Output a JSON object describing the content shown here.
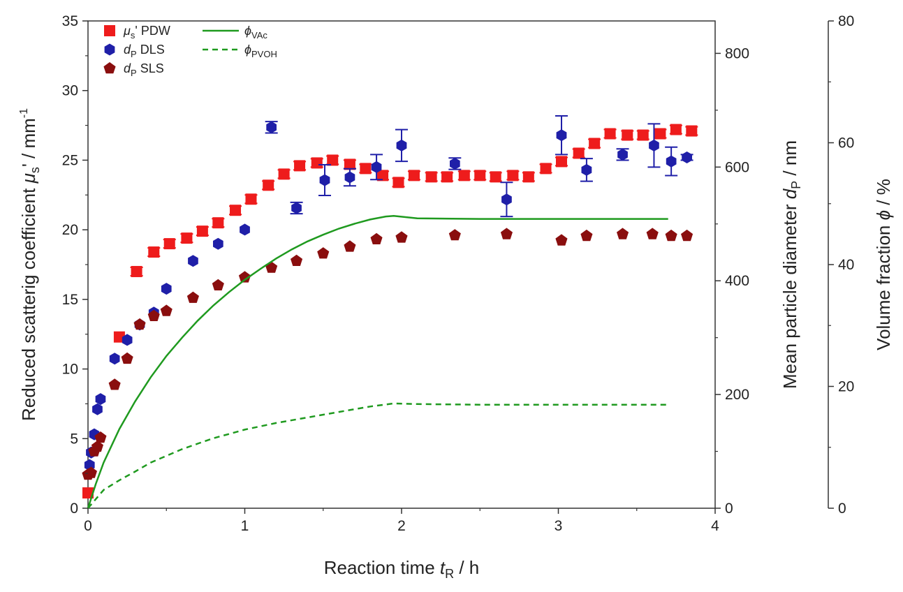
{
  "chart_data": {
    "type": "scatter",
    "x_axis": {
      "label": "Reaction time t_R / h",
      "label_main": "Reaction time ",
      "label_var": "t",
      "label_sub": "R",
      "label_tail": " / h",
      "range": [
        0,
        4
      ],
      "ticks": [
        "0",
        "1",
        "2",
        "3",
        "4"
      ]
    },
    "y_axes": [
      {
        "id": "mu",
        "label": "Reduced scatterig coefficient μs' / mm-1",
        "label_main": "Reduced scatterig coefficient ",
        "label_var": "μ",
        "label_sub": "s",
        "label_tail": "' / mm",
        "label_sup": "-1",
        "range": [
          0,
          35
        ],
        "ticks": [
          "0",
          "5",
          "10",
          "15",
          "20",
          "25",
          "30",
          "35"
        ]
      },
      {
        "id": "dp",
        "label": "Mean particle diameter dP / nm",
        "label_main": "Mean particle diameter ",
        "label_var": "d",
        "label_sub": "P",
        "label_tail": " / nm",
        "range": [
          0,
          857
        ],
        "ticks": [
          "0",
          "200",
          "400",
          "600",
          "800"
        ]
      },
      {
        "id": "phi",
        "label": "Volume fraction ϕ / %",
        "label_main": "Volume fraction ",
        "label_var": "ϕ",
        "label_tail": " / %",
        "range": [
          0,
          80
        ],
        "ticks": [
          "0",
          "20",
          "40",
          "60",
          "80"
        ]
      }
    ],
    "legend_position": "top-left",
    "series": [
      {
        "name": "μs' PDW",
        "legend_var": "μ",
        "legend_sub": "s",
        "legend_tail": "' PDW",
        "axis": "mu",
        "marker": "square",
        "color": "#ee1c1c",
        "points": [
          [
            0.0,
            1.1,
            0
          ],
          [
            0.2,
            12.3,
            0
          ],
          [
            0.31,
            17.0,
            0.3
          ],
          [
            0.42,
            18.4,
            0.3
          ],
          [
            0.52,
            19.0,
            0.3
          ],
          [
            0.63,
            19.4,
            0.3
          ],
          [
            0.73,
            19.9,
            0.3
          ],
          [
            0.83,
            20.5,
            0.3
          ],
          [
            0.94,
            21.4,
            0.3
          ],
          [
            1.04,
            22.2,
            0.3
          ],
          [
            1.15,
            23.2,
            0.3
          ],
          [
            1.25,
            24.0,
            0.3
          ],
          [
            1.35,
            24.6,
            0.3
          ],
          [
            1.46,
            24.8,
            0.3
          ],
          [
            1.56,
            25.0,
            0.3
          ],
          [
            1.67,
            24.7,
            0.3
          ],
          [
            1.77,
            24.4,
            0.3
          ],
          [
            1.88,
            23.9,
            0.3
          ],
          [
            1.98,
            23.4,
            0.3
          ],
          [
            2.08,
            23.9,
            0.3
          ],
          [
            2.19,
            23.8,
            0.3
          ],
          [
            2.29,
            23.8,
            0.3
          ],
          [
            2.4,
            23.9,
            0.3
          ],
          [
            2.5,
            23.9,
            0.3
          ],
          [
            2.6,
            23.8,
            0.3
          ],
          [
            2.71,
            23.9,
            0.3
          ],
          [
            2.81,
            23.8,
            0.3
          ],
          [
            2.92,
            24.4,
            0.3
          ],
          [
            3.02,
            24.9,
            0.3
          ],
          [
            3.13,
            25.5,
            0.3
          ],
          [
            3.23,
            26.2,
            0.3
          ],
          [
            3.33,
            26.9,
            0.3
          ],
          [
            3.44,
            26.8,
            0.3
          ],
          [
            3.54,
            26.8,
            0.3
          ],
          [
            3.65,
            26.9,
            0.3
          ],
          [
            3.75,
            27.2,
            0.3
          ],
          [
            3.85,
            27.1,
            0.3
          ]
        ]
      },
      {
        "name": "dP DLS",
        "legend_var": "d",
        "legend_sub": "P",
        "legend_tail": " DLS",
        "axis": "dp",
        "marker": "hexagon",
        "color": "#1f1fa8",
        "points": [
          [
            0.01,
            76,
            0
          ],
          [
            0.02,
            98,
            0
          ],
          [
            0.04,
            130,
            0
          ],
          [
            0.06,
            174,
            0
          ],
          [
            0.08,
            192,
            0
          ],
          [
            0.17,
            263,
            0
          ],
          [
            0.25,
            296,
            0
          ],
          [
            0.33,
            323,
            0
          ],
          [
            0.42,
            344,
            0
          ],
          [
            0.5,
            386,
            0
          ],
          [
            0.67,
            435,
            0
          ],
          [
            0.83,
            465,
            0
          ],
          [
            1.0,
            490,
            0
          ],
          [
            1.17,
            670,
            10
          ],
          [
            1.33,
            528,
            10
          ],
          [
            1.51,
            577,
            27
          ],
          [
            1.67,
            582,
            15
          ],
          [
            1.84,
            600,
            22
          ],
          [
            2.0,
            638,
            28
          ],
          [
            2.34,
            606,
            10
          ],
          [
            2.67,
            543,
            30
          ],
          [
            3.02,
            656,
            34
          ],
          [
            3.18,
            595,
            20
          ],
          [
            3.41,
            622,
            10
          ],
          [
            3.61,
            638,
            38
          ],
          [
            3.72,
            610,
            25
          ],
          [
            3.82,
            617,
            5
          ]
        ]
      },
      {
        "name": "dP SLS",
        "legend_var": "d",
        "legend_sub": "P",
        "legend_tail": " SLS",
        "axis": "dp",
        "marker": "pentagon",
        "color": "#8a0e0e",
        "points": [
          [
            0.0,
            59,
            0
          ],
          [
            0.02,
            62,
            0
          ],
          [
            0.04,
            100,
            0
          ],
          [
            0.06,
            108,
            0
          ],
          [
            0.08,
            124,
            0
          ],
          [
            0.17,
            217,
            0
          ],
          [
            0.25,
            263,
            0
          ],
          [
            0.33,
            323,
            0
          ],
          [
            0.42,
            338,
            0
          ],
          [
            0.5,
            347,
            0
          ],
          [
            0.67,
            370,
            0
          ],
          [
            0.83,
            392,
            0
          ],
          [
            1.0,
            406,
            0
          ],
          [
            1.17,
            423,
            0
          ],
          [
            1.33,
            435,
            0
          ],
          [
            1.5,
            448,
            0
          ],
          [
            1.67,
            460,
            0
          ],
          [
            1.84,
            473,
            0
          ],
          [
            2.0,
            476,
            0
          ],
          [
            2.34,
            480,
            0
          ],
          [
            2.67,
            482,
            0
          ],
          [
            3.02,
            471,
            0
          ],
          [
            3.18,
            479,
            0
          ],
          [
            3.41,
            482,
            0
          ],
          [
            3.6,
            482,
            0
          ],
          [
            3.72,
            479,
            0
          ],
          [
            3.82,
            479,
            0
          ]
        ]
      },
      {
        "name": "ϕVAc",
        "legend_var": "ϕ",
        "legend_sub": "VAc",
        "legend_tail": "",
        "axis": "phi",
        "marker": "line",
        "color": "#1f9a1f",
        "dash": "none",
        "points": [
          [
            0,
            0
          ],
          [
            0.05,
            4
          ],
          [
            0.1,
            7.5
          ],
          [
            0.2,
            13
          ],
          [
            0.3,
            17.5
          ],
          [
            0.4,
            21.5
          ],
          [
            0.5,
            25
          ],
          [
            0.6,
            28
          ],
          [
            0.7,
            30.8
          ],
          [
            0.8,
            33.3
          ],
          [
            0.9,
            35.5
          ],
          [
            1.0,
            37.5
          ],
          [
            1.1,
            39.3
          ],
          [
            1.2,
            41
          ],
          [
            1.3,
            42.5
          ],
          [
            1.4,
            43.8
          ],
          [
            1.5,
            44.9
          ],
          [
            1.6,
            45.9
          ],
          [
            1.7,
            46.7
          ],
          [
            1.8,
            47.4
          ],
          [
            1.9,
            47.9
          ],
          [
            1.95,
            48
          ],
          [
            2.1,
            47.6
          ],
          [
            2.5,
            47.5
          ],
          [
            3.0,
            47.5
          ],
          [
            3.5,
            47.5
          ],
          [
            3.7,
            47.5
          ]
        ]
      },
      {
        "name": "ϕPVOH",
        "legend_var": "ϕ",
        "legend_sub": "PVOH",
        "legend_tail": "",
        "axis": "phi",
        "marker": "line",
        "color": "#1f9a1f",
        "dash": "8 6",
        "points": [
          [
            0,
            0
          ],
          [
            0.1,
            3
          ],
          [
            0.2,
            4.6
          ],
          [
            0.3,
            6
          ],
          [
            0.4,
            7.5
          ],
          [
            0.5,
            8.6
          ],
          [
            0.6,
            9.7
          ],
          [
            0.7,
            10.6
          ],
          [
            0.8,
            11.5
          ],
          [
            0.9,
            12.2
          ],
          [
            1.0,
            12.9
          ],
          [
            1.2,
            14.0
          ],
          [
            1.4,
            14.9
          ],
          [
            1.6,
            15.8
          ],
          [
            1.8,
            16.7
          ],
          [
            1.95,
            17.2
          ],
          [
            2.1,
            17.1
          ],
          [
            2.5,
            17.0
          ],
          [
            3.0,
            17.0
          ],
          [
            3.5,
            17.0
          ],
          [
            3.7,
            17.0
          ]
        ]
      }
    ]
  }
}
